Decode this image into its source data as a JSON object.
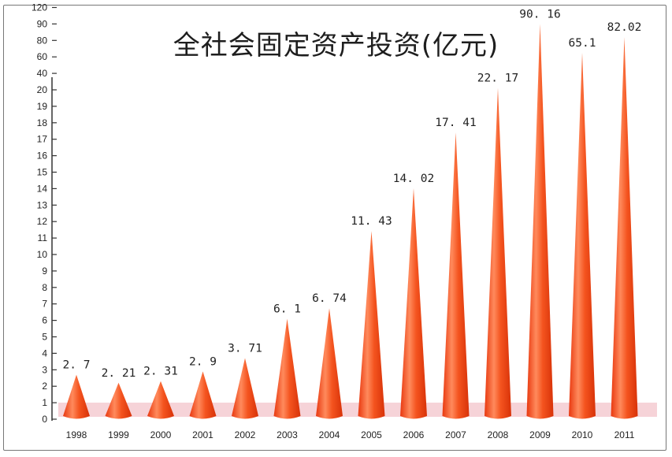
{
  "chart_data": {
    "type": "bar",
    "title": "全社会固定资产投资(亿元)",
    "xlabel": "",
    "ylabel": "",
    "categories": [
      "1998",
      "1999",
      "2000",
      "2001",
      "2002",
      "2003",
      "2004",
      "2005",
      "2006",
      "2007",
      "2008",
      "2009",
      "2010",
      "2011"
    ],
    "values": [
      2.7,
      2.21,
      2.31,
      2.9,
      3.71,
      6.1,
      6.74,
      11.43,
      14.02,
      17.41,
      22.17,
      90.16,
      65.1,
      82.02
    ],
    "value_labels": [
      "2. 7",
      "2. 21",
      "2. 31",
      "2. 9",
      "3. 71",
      "6. 1",
      "6. 74",
      "11. 43",
      "14. 02",
      "17. 41",
      "22. 17",
      "90. 16",
      "65.1",
      "82.02"
    ],
    "y_ticks": [
      "0",
      "1",
      "2",
      "3",
      "4",
      "5",
      "6",
      "7",
      "8",
      "9",
      "10",
      "11",
      "12",
      "13",
      "14",
      "15",
      "16",
      "17",
      "18",
      "19",
      "20",
      "40",
      "60",
      "80",
      "90",
      "120"
    ],
    "y_axis_scale": "non-linear (1-unit steps from 0 to 20, then 40, 60, 80, 90, 120)",
    "grid": false,
    "bar_shape": "cone",
    "colors": {
      "bar": "#f2491d",
      "bar_highlight": "#ff9a73",
      "base_band": "#f6d3d8"
    }
  }
}
